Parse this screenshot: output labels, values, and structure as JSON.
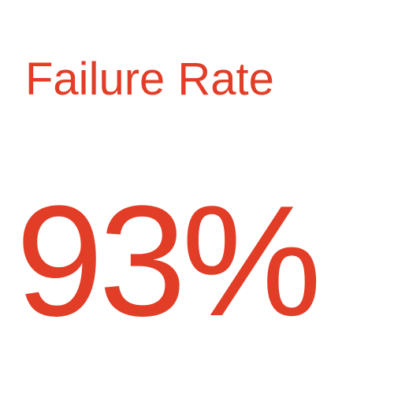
{
  "stat": {
    "label": "Failure Rate",
    "value": "93%",
    "accent_color": "#e23d26",
    "background_color": "#ffffff"
  }
}
